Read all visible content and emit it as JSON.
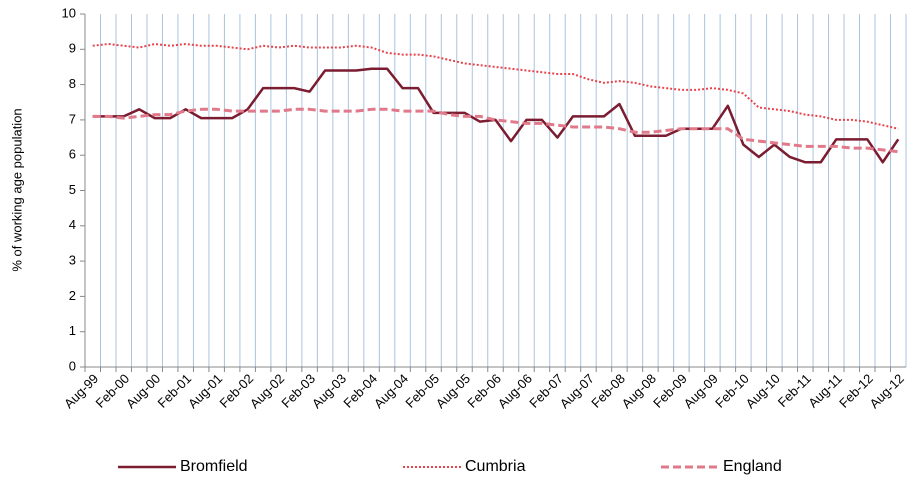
{
  "chart_data": {
    "type": "line",
    "y_label": "% of working age population",
    "categories": [
      "Aug-99",
      null,
      "Feb-00",
      null,
      "Aug-00",
      null,
      "Feb-01",
      null,
      "Aug-01",
      null,
      "Feb-02",
      null,
      "Aug-02",
      null,
      "Feb-03",
      null,
      "Aug-03",
      null,
      "Feb-04",
      null,
      "Aug-04",
      null,
      "Feb-05",
      null,
      "Aug-05",
      null,
      "Feb-06",
      null,
      "Aug-06",
      null,
      "Feb-07",
      null,
      "Aug-07",
      null,
      "Feb-08",
      null,
      "Aug-08",
      null,
      "Feb-09",
      null,
      "Aug-09",
      null,
      "Feb-10",
      null,
      "Aug-10",
      null,
      "Feb-11",
      null,
      "Aug-11",
      null,
      "Feb-12",
      null,
      "Aug-12"
    ],
    "series": [
      {
        "name": "Bromfield",
        "color": "#7b1c30",
        "style": "solid",
        "values": [
          7.1,
          7.1,
          7.1,
          7.3,
          7.05,
          7.05,
          7.3,
          7.05,
          7.05,
          7.05,
          7.3,
          7.9,
          7.9,
          7.9,
          7.8,
          8.4,
          8.4,
          8.4,
          8.45,
          8.45,
          7.9,
          7.9,
          7.2,
          7.2,
          7.2,
          6.95,
          7.0,
          6.4,
          7.0,
          7.0,
          6.5,
          7.1,
          7.1,
          7.1,
          7.45,
          6.55,
          6.55,
          6.55,
          6.75,
          6.75,
          6.75,
          7.4,
          6.3,
          5.95,
          6.3,
          5.95,
          5.8,
          5.8,
          6.45,
          6.45,
          6.45,
          5.8,
          6.45
        ]
      },
      {
        "name": "Cumbria",
        "color": "#e8424b",
        "style": "dotted",
        "values": [
          9.1,
          9.15,
          9.1,
          9.05,
          9.15,
          9.1,
          9.15,
          9.1,
          9.1,
          9.05,
          9.0,
          9.1,
          9.05,
          9.1,
          9.05,
          9.05,
          9.05,
          9.1,
          9.05,
          8.9,
          8.85,
          8.85,
          8.8,
          8.7,
          8.6,
          8.55,
          8.5,
          8.45,
          8.4,
          8.35,
          8.3,
          8.3,
          8.15,
          8.05,
          8.1,
          8.05,
          7.95,
          7.9,
          7.85,
          7.85,
          7.9,
          7.85,
          7.75,
          7.35,
          7.3,
          7.25,
          7.15,
          7.1,
          7.0,
          7.0,
          6.95,
          6.85,
          6.75
        ]
      },
      {
        "name": "England",
        "color": "#e07a8a",
        "style": "dashed",
        "values": [
          7.1,
          7.1,
          7.05,
          7.1,
          7.15,
          7.15,
          7.25,
          7.3,
          7.3,
          7.25,
          7.25,
          7.25,
          7.25,
          7.3,
          7.3,
          7.25,
          7.25,
          7.25,
          7.3,
          7.3,
          7.25,
          7.25,
          7.25,
          7.15,
          7.1,
          7.1,
          7.0,
          6.95,
          6.9,
          6.9,
          6.85,
          6.8,
          6.8,
          6.8,
          6.75,
          6.65,
          6.65,
          6.7,
          6.75,
          6.75,
          6.75,
          6.75,
          6.45,
          6.4,
          6.35,
          6.3,
          6.25,
          6.25,
          6.25,
          6.2,
          6.2,
          6.15,
          6.1
        ]
      }
    ],
    "ylim": [
      0,
      10
    ],
    "yticks": [
      0,
      1,
      2,
      3,
      4,
      5,
      6,
      7,
      8,
      9,
      10
    ],
    "legend": "bottom"
  }
}
